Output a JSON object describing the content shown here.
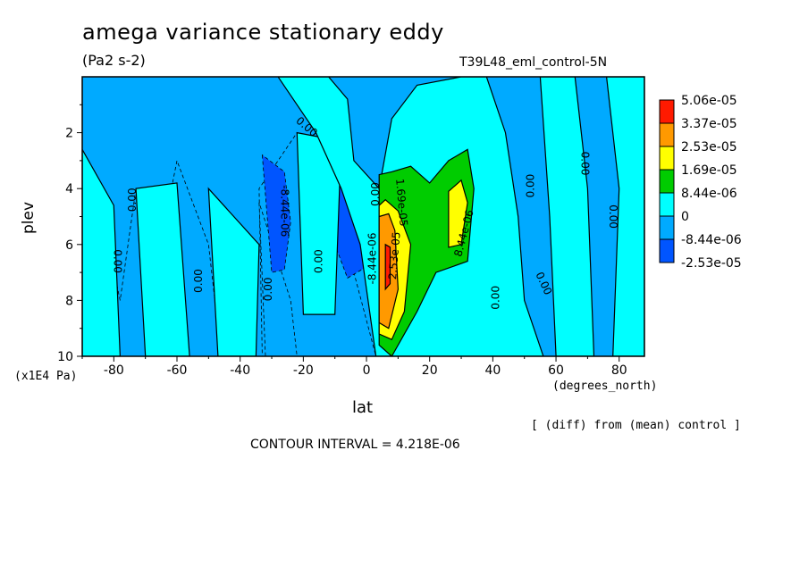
{
  "chart_data": {
    "type": "heatmap",
    "title": "amega variance stationary eddy",
    "units": "(Pa2 s-2)",
    "dataset": "T39L48_eml_control-5N",
    "xlabel": "lat",
    "xunits": "(degrees_north)",
    "ylabel": "plev",
    "yunits": "(x1E4 Pa)",
    "note": "[ (diff) from (mean) control ]",
    "contour_interval": "CONTOUR INTERVAL = 4.218E-06",
    "xlim": [
      -90,
      88
    ],
    "ylim": [
      10,
      0
    ],
    "x_ticks": [
      -80,
      -60,
      -40,
      -20,
      0,
      20,
      40,
      60,
      80
    ],
    "x_tick_labels": [
      "-80",
      "-60",
      "-40",
      "-20",
      "0",
      "20",
      "40",
      "60",
      "80"
    ],
    "y_ticks": [
      2,
      4,
      6,
      8,
      10
    ],
    "y_tick_labels": [
      "2",
      "4",
      "6",
      "8",
      "10"
    ],
    "background_level": 0,
    "legend": {
      "labels": [
        "5.06e-05",
        "3.37e-05",
        "2.53e-05",
        "1.69e-05",
        "8.44e-06",
        "0",
        "-8.44e-06",
        "-2.53e-05"
      ],
      "colors": [
        "#ff1a00",
        "#ff9900",
        "#ffff00",
        "#00cc00",
        "#00ffff",
        "#00aaff",
        "#0055ff"
      ]
    },
    "regions": [
      {
        "level": "neg1",
        "color": "#00aaff",
        "points": [
          [
            -90,
            0
          ],
          [
            -90,
            2.6
          ],
          [
            -84,
            4.8
          ],
          [
            -78,
            8
          ],
          [
            -73,
            4
          ],
          [
            -67,
            7
          ],
          [
            -60,
            3
          ],
          [
            -50,
            6
          ],
          [
            -46,
            10
          ],
          [
            -33,
            10
          ],
          [
            -34,
            4
          ],
          [
            -22,
            2
          ],
          [
            -8,
            4
          ],
          [
            -4,
            7
          ],
          [
            3,
            10
          ],
          [
            4,
            4
          ],
          [
            16,
            2.6
          ],
          [
            32,
            2.3
          ],
          [
            42,
            3.2
          ],
          [
            45,
            5
          ],
          [
            42,
            8.4
          ],
          [
            46,
            10
          ],
          [
            88,
            10
          ],
          [
            88,
            0
          ]
        ]
      },
      {
        "level": "neg1",
        "color": "#00aaff",
        "points": [
          [
            -34,
            4.5
          ],
          [
            -32,
            10
          ],
          [
            -22,
            10
          ],
          [
            -24,
            8
          ]
        ]
      },
      {
        "level": "neg2",
        "color": "#0055ff",
        "points": [
          [
            -33,
            2.8
          ],
          [
            -30,
            7
          ],
          [
            -26,
            6.9
          ],
          [
            -24,
            5.2
          ],
          [
            -26,
            3.4
          ]
        ]
      },
      {
        "level": "neg2",
        "color": "#0055ff",
        "points": [
          [
            -13,
            3.3
          ],
          [
            -12,
            5.4
          ],
          [
            -6,
            7.2
          ],
          [
            0,
            6.8
          ],
          [
            2,
            5
          ],
          [
            1,
            3.8
          ],
          [
            -5,
            2.9
          ]
        ]
      },
      {
        "level": "pos1",
        "color": "#00ffff",
        "points": [
          [
            -90,
            2.6
          ],
          [
            -90,
            10
          ],
          [
            -78,
            10
          ],
          [
            -80,
            4.6
          ]
        ]
      },
      {
        "level": "pos1",
        "color": "#00ffff",
        "points": [
          [
            -73,
            4
          ],
          [
            -70,
            10
          ],
          [
            -56,
            10
          ],
          [
            -60,
            3.8
          ]
        ]
      },
      {
        "level": "pos1",
        "color": "#00ffff",
        "points": [
          [
            -50,
            4
          ],
          [
            -47,
            10
          ],
          [
            -35,
            10
          ],
          [
            -34,
            6
          ]
        ]
      },
      {
        "level": "pos1",
        "color": "#00ffff",
        "points": [
          [
            -22,
            2
          ],
          [
            -8,
            2.3
          ],
          [
            -10,
            8.5
          ],
          [
            -20,
            8.5
          ]
        ]
      },
      {
        "level": "pos1",
        "color": "#00ffff",
        "points": [
          [
            -28,
            0
          ],
          [
            -12,
            0
          ],
          [
            -6,
            0.8
          ],
          [
            -4,
            3
          ],
          [
            4,
            4
          ],
          [
            8,
            1.5
          ],
          [
            16,
            0.3
          ],
          [
            30,
            0
          ],
          [
            38,
            0
          ],
          [
            44,
            2
          ],
          [
            48,
            5
          ],
          [
            50,
            8
          ],
          [
            56,
            10
          ],
          [
            3,
            10
          ],
          [
            -2,
            6
          ],
          [
            -8,
            4
          ],
          [
            -16,
            2
          ]
        ]
      },
      {
        "level": "pos1",
        "color": "#00ffff",
        "points": [
          [
            55,
            0
          ],
          [
            66,
            0
          ],
          [
            70,
            4
          ],
          [
            72,
            10
          ],
          [
            60,
            10
          ],
          [
            58,
            5
          ]
        ]
      },
      {
        "level": "pos1",
        "color": "#00ffff",
        "points": [
          [
            76,
            0
          ],
          [
            88,
            0
          ],
          [
            88,
            10
          ],
          [
            78,
            10
          ],
          [
            80,
            4
          ]
        ]
      },
      {
        "level": "pos2",
        "color": "#00cc00",
        "points": [
          [
            4,
            3.5
          ],
          [
            4,
            9.6
          ],
          [
            8,
            10
          ],
          [
            16,
            8.4
          ],
          [
            22,
            7
          ],
          [
            32,
            6.6
          ],
          [
            34,
            4
          ],
          [
            32,
            2.6
          ],
          [
            26,
            3
          ],
          [
            20,
            3.8
          ],
          [
            14,
            3.2
          ],
          [
            8,
            3.4
          ]
        ]
      },
      {
        "level": "pos3",
        "color": "#ffff00",
        "points": [
          [
            4,
            4.6
          ],
          [
            4,
            9.2
          ],
          [
            8,
            9.4
          ],
          [
            12,
            8.4
          ],
          [
            14,
            6
          ],
          [
            10,
            4.8
          ],
          [
            6,
            4.4
          ]
        ]
      },
      {
        "level": "pos3",
        "color": "#ffff00",
        "points": [
          [
            26,
            4.1
          ],
          [
            26,
            6.1
          ],
          [
            30,
            6
          ],
          [
            32,
            4.5
          ],
          [
            30,
            3.7
          ]
        ]
      },
      {
        "level": "pos4",
        "color": "#ff9900",
        "points": [
          [
            4,
            5
          ],
          [
            4,
            8.8
          ],
          [
            7,
            9
          ],
          [
            10,
            7.6
          ],
          [
            9,
            5.5
          ],
          [
            7,
            4.9
          ]
        ]
      },
      {
        "level": "pos5",
        "color": "#ff1a00",
        "points": [
          [
            6,
            6
          ],
          [
            6,
            7.6
          ],
          [
            7.5,
            7.4
          ],
          [
            7.5,
            6.1
          ]
        ]
      }
    ],
    "contour_labels": [
      {
        "text": "0.00",
        "x": -19,
        "y": 1.8,
        "angle": 40
      },
      {
        "text": "-8.44e-06",
        "x": -26,
        "y": 4.8,
        "angle": 90
      },
      {
        "text": "0.00",
        "x": -74,
        "y": 4.4,
        "angle": -90
      },
      {
        "text": "0.00",
        "x": -79,
        "y": 6.6,
        "angle": 90
      },
      {
        "text": "0.00",
        "x": -53,
        "y": 7.3,
        "angle": -90
      },
      {
        "text": "0.00",
        "x": -31,
        "y": 7.6,
        "angle": -90
      },
      {
        "text": "0.00",
        "x": -15,
        "y": 6.6,
        "angle": -90
      },
      {
        "text": "0.00",
        "x": 3,
        "y": 4.2,
        "angle": -90
      },
      {
        "text": "-8.44e-06",
        "x": 2,
        "y": 6.5,
        "angle": -90
      },
      {
        "text": "1.69e-05",
        "x": 11,
        "y": 4.5,
        "angle": 85
      },
      {
        "text": "2.53e-05",
        "x": 9,
        "y": 6.4,
        "angle": -85
      },
      {
        "text": "8.44e-06",
        "x": 31,
        "y": 5.6,
        "angle": -75
      },
      {
        "text": "0.00",
        "x": 52,
        "y": 3.9,
        "angle": -90
      },
      {
        "text": "0.00",
        "x": 69,
        "y": 3.1,
        "angle": 90
      },
      {
        "text": "0.00",
        "x": 78,
        "y": 5.0,
        "angle": 90
      },
      {
        "text": "0.00",
        "x": 41,
        "y": 7.9,
        "angle": -90
      },
      {
        "text": "0.00",
        "x": 56,
        "y": 7.4,
        "angle": 65
      }
    ]
  }
}
